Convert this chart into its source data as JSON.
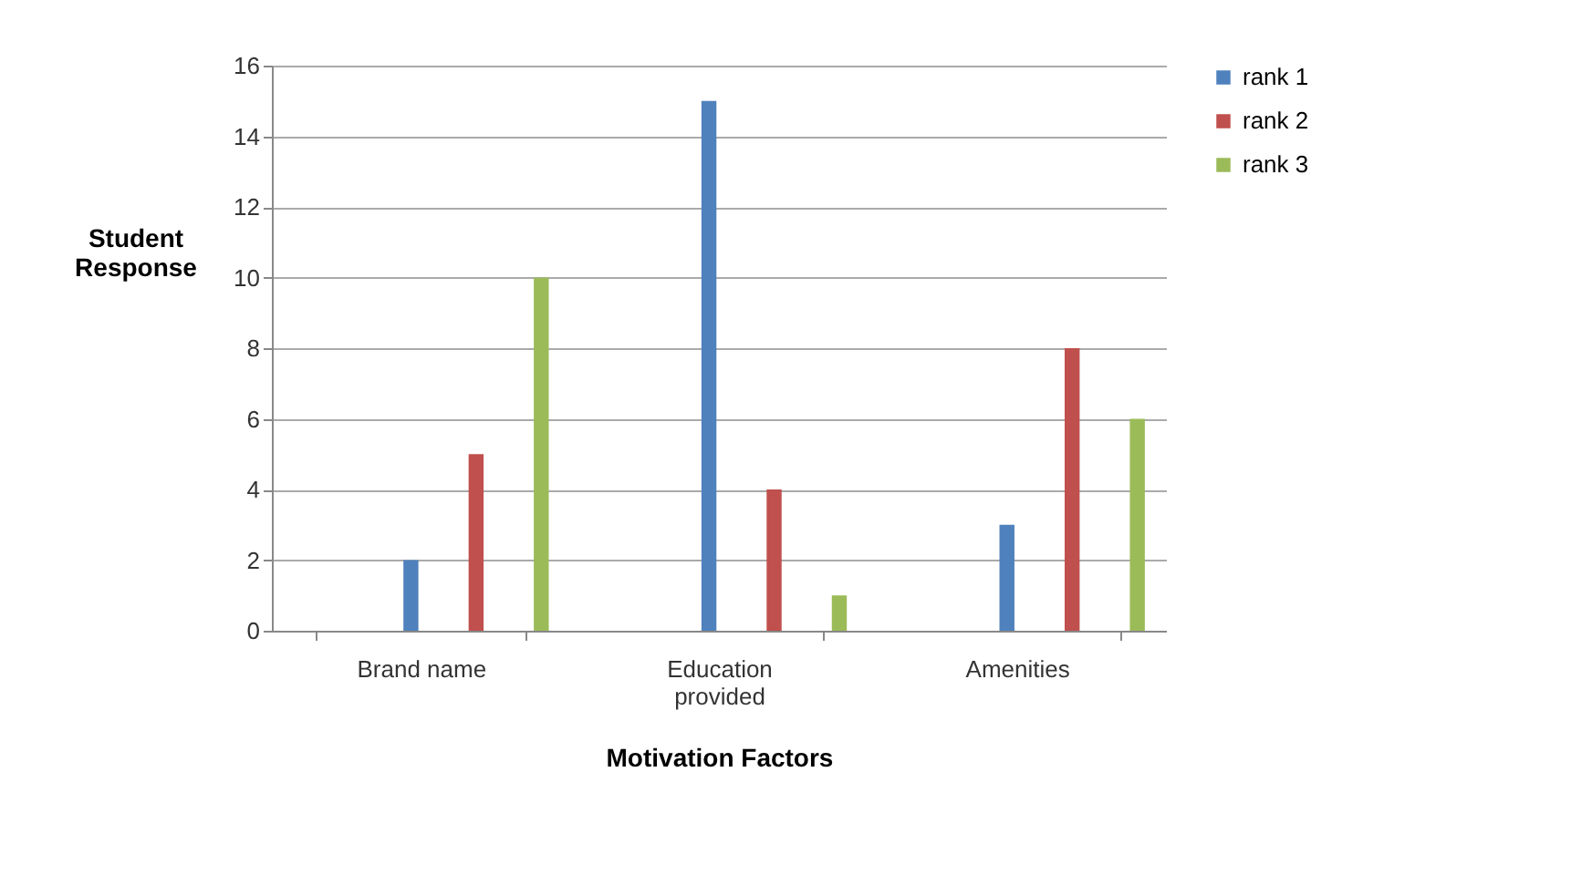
{
  "chart_data": {
    "type": "bar",
    "xlabel": "Motivation Factors",
    "ylabel": "Student Response",
    "categories": [
      "Brand name",
      "Education provided",
      "Amenities"
    ],
    "series": [
      {
        "name": "rank 1",
        "color": "#4f81bd",
        "values": [
          2,
          15,
          3
        ]
      },
      {
        "name": "rank 2",
        "color": "#c0504d",
        "values": [
          5,
          4,
          8
        ]
      },
      {
        "name": "rank 3",
        "color": "#9bbb59",
        "values": [
          10,
          1,
          6
        ]
      }
    ],
    "ylim": [
      0,
      16
    ],
    "yticks": [
      0,
      2,
      4,
      6,
      8,
      10,
      12,
      14,
      16
    ],
    "grid": "y",
    "legend": "right"
  }
}
